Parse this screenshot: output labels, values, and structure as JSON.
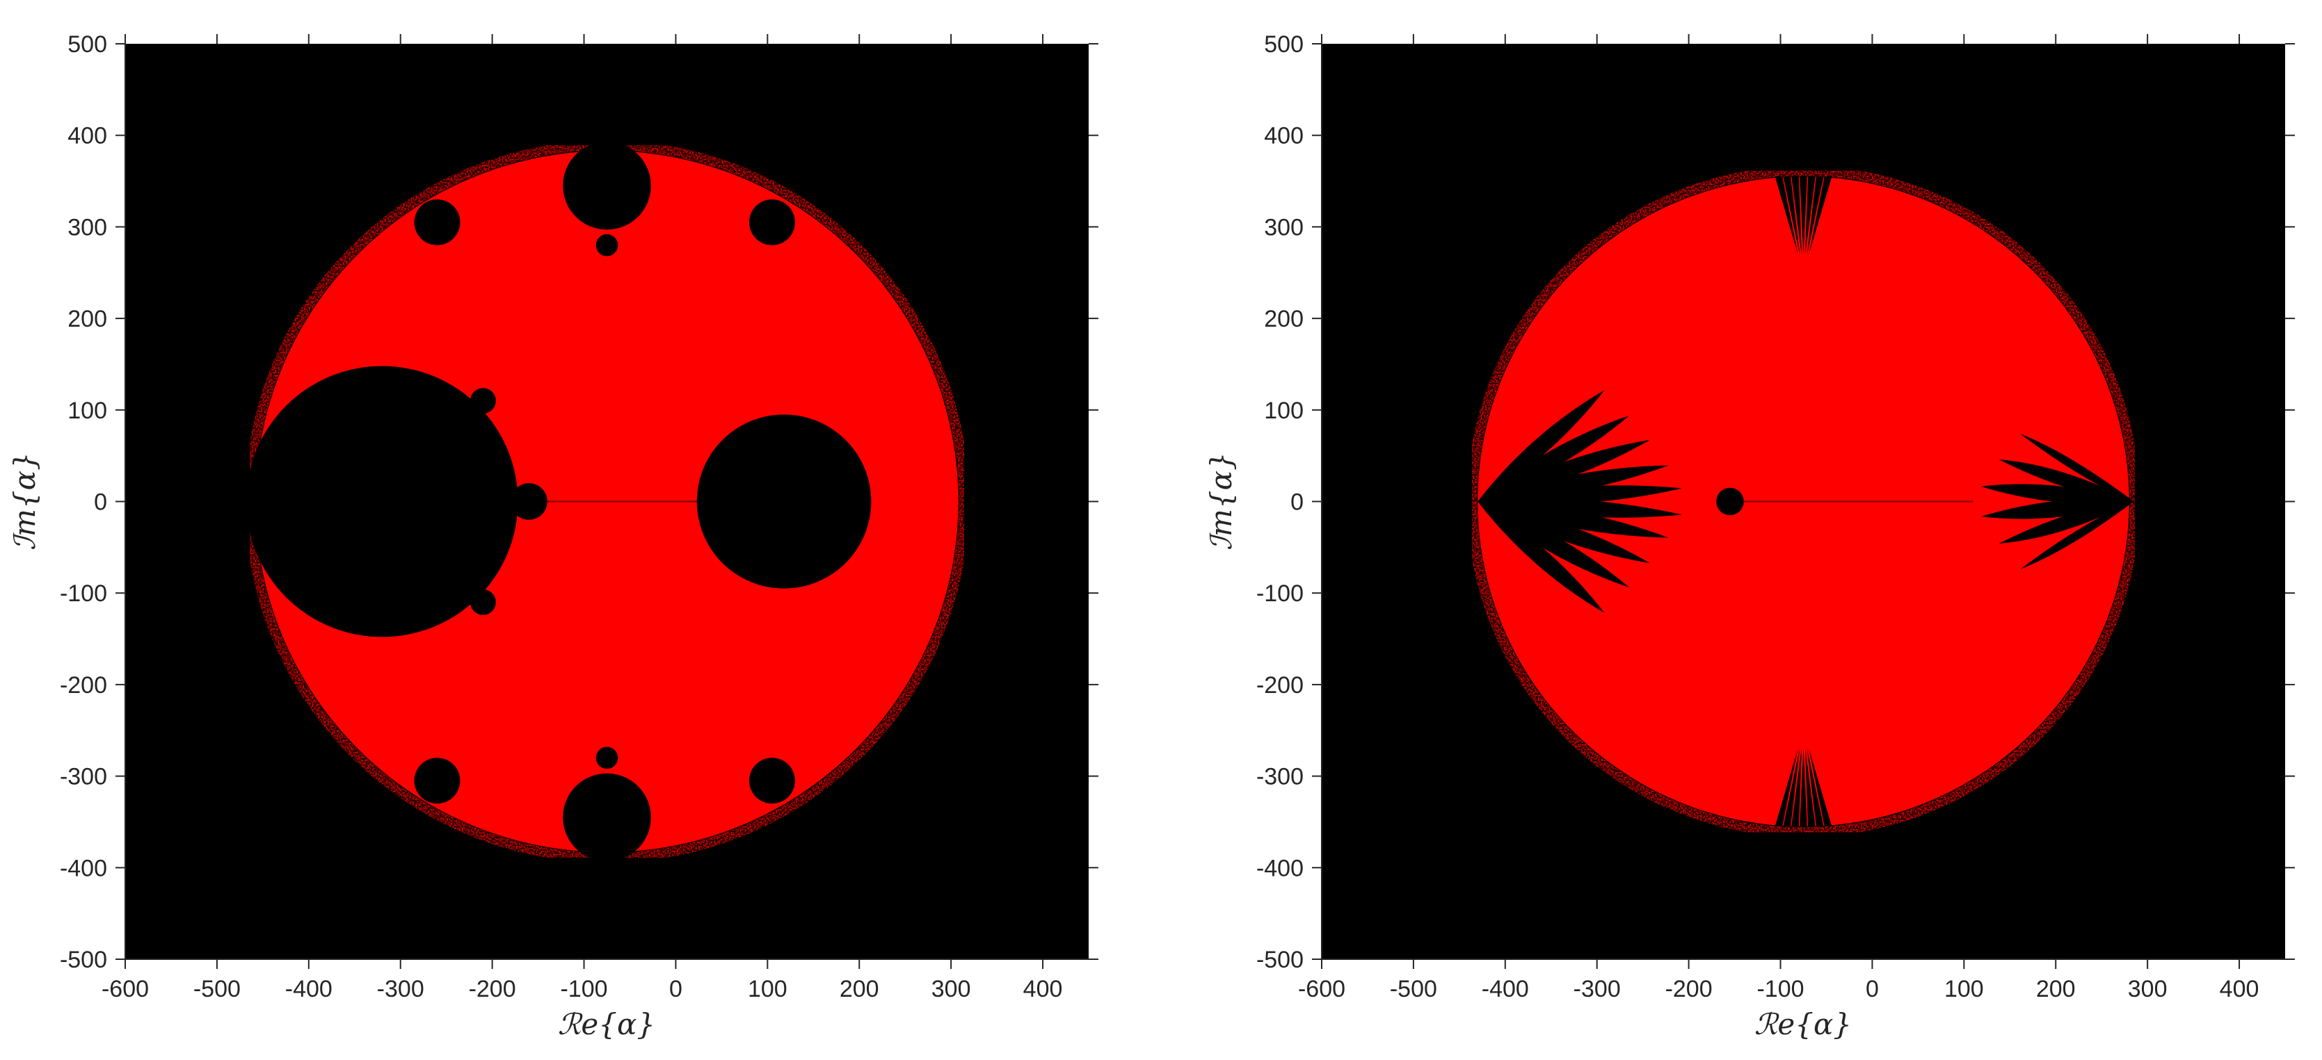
{
  "chart_data": [
    {
      "type": "heatmap",
      "title": "",
      "xlabel": "ℛe{α}",
      "ylabel": "ℐm{α}",
      "xlim": [
        -600,
        450
      ],
      "ylim": [
        -500,
        500
      ],
      "xticks": [
        -600,
        -500,
        -400,
        -300,
        -200,
        -100,
        0,
        100,
        200,
        300,
        400
      ],
      "yticks": [
        -500,
        -400,
        -300,
        -200,
        -100,
        0,
        100,
        200,
        300,
        400,
        500
      ],
      "grid": false,
      "background_color": "#000000",
      "fill_color": "#ff0000",
      "region": {
        "center": [
          -75,
          0
        ],
        "radius": 383,
        "holes": [
          {
            "center": [
              -320,
              0
            ],
            "radius": 148
          },
          {
            "center": [
              118,
              0
            ],
            "radius": 95
          },
          {
            "center": [
              -75,
              345
            ],
            "radius": 48
          },
          {
            "center": [
              -75,
              -345
            ],
            "radius": 48
          },
          {
            "center": [
              -160,
              0
            ],
            "radius": 20
          },
          {
            "center": [
              100,
              0
            ],
            "radius": 10
          },
          {
            "center": [
              -260,
              305
            ],
            "radius": 25
          },
          {
            "center": [
              -260,
              -305
            ],
            "radius": 25
          },
          {
            "center": [
              105,
              305
            ],
            "radius": 25
          },
          {
            "center": [
              105,
              -305
            ],
            "radius": 25
          },
          {
            "center": [
              -210,
              110
            ],
            "radius": 14
          },
          {
            "center": [
              -210,
              -110
            ],
            "radius": 14
          },
          {
            "center": [
              -75,
              280
            ],
            "radius": 12
          },
          {
            "center": [
              -75,
              -280
            ],
            "radius": 12
          }
        ]
      }
    },
    {
      "type": "heatmap",
      "title": "",
      "xlabel": "ℛe{α}",
      "ylabel": "ℐm{α}",
      "xlim": [
        -600,
        450
      ],
      "ylim": [
        -500,
        500
      ],
      "xticks": [
        -600,
        -500,
        -400,
        -300,
        -200,
        -100,
        0,
        100,
        200,
        300,
        400
      ],
      "yticks": [
        -500,
        -400,
        -300,
        -200,
        -100,
        0,
        100,
        200,
        300,
        400,
        500
      ],
      "grid": false,
      "background_color": "#000000",
      "fill_color": "#ff0000",
      "region": {
        "center": [
          -75,
          0
        ],
        "radius": 355,
        "holes": [
          {
            "center": [
              -155,
              0
            ],
            "radius": 15
          }
        ],
        "dark_lobes_left": {
          "anchor": [
            -430,
            0
          ],
          "tip_x": -200,
          "angles_deg": [
            -36,
            -27,
            -19,
            -11,
            -4,
            4,
            11,
            19,
            27,
            36
          ]
        },
        "dark_lobes_right": {
          "anchor": [
            285,
            0
          ],
          "tip_x": 110,
          "angles_deg": [
            -28,
            -17,
            -6,
            6,
            17,
            28
          ]
        },
        "dark_streaks_top": {
          "anchor": [
            -75,
            355
          ],
          "tip_y": 270
        },
        "dark_streaks_bottom": {
          "anchor": [
            -75,
            -355
          ],
          "tip_y": -270
        }
      }
    }
  ]
}
